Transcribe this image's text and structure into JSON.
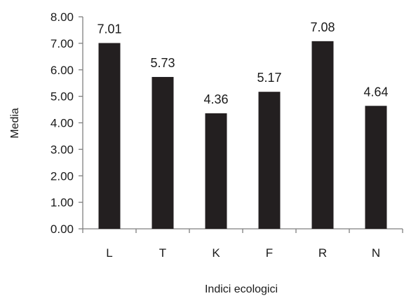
{
  "chart_data": {
    "type": "bar",
    "categories": [
      "L",
      "T",
      "K",
      "F",
      "R",
      "N"
    ],
    "values": [
      7.01,
      5.73,
      4.36,
      5.17,
      7.08,
      4.64
    ],
    "data_labels": [
      "7.01",
      "5.73",
      "4.36",
      "5.17",
      "7.08",
      "4.64"
    ],
    "title": "",
    "xlabel": "Indici ecologici",
    "ylabel": "Media",
    "ylim": [
      0,
      8
    ],
    "yticks": [
      0,
      1,
      2,
      3,
      4,
      5,
      6,
      7,
      8
    ],
    "ytick_labels": [
      "0.00",
      "1.00",
      "2.00",
      "3.00",
      "4.00",
      "5.00",
      "6.00",
      "7.00",
      "8.00"
    ],
    "grid": false,
    "legend": "none",
    "bar_color": "#231f20"
  }
}
